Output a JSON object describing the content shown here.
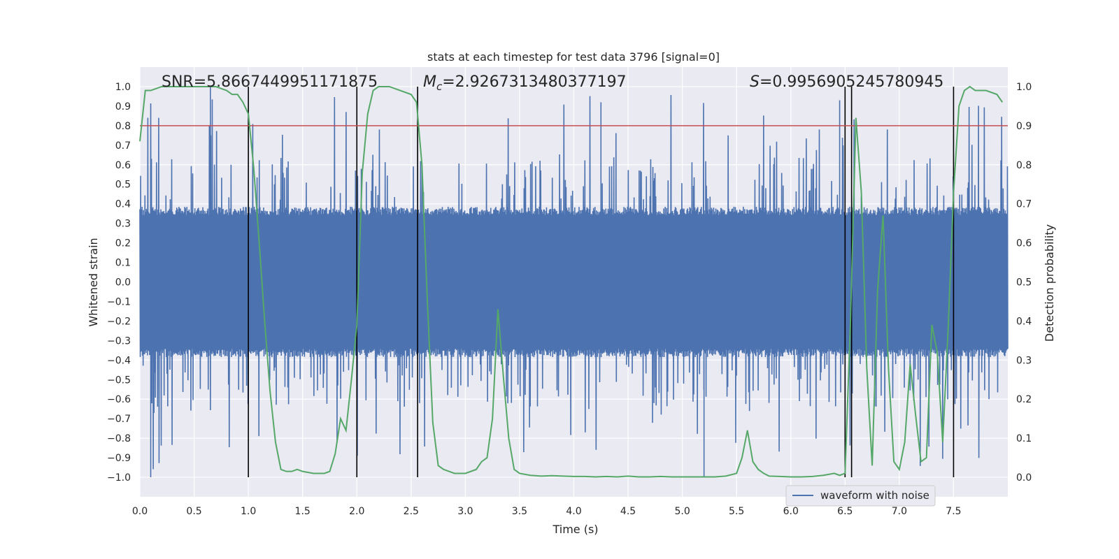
{
  "chart_data": {
    "type": "line",
    "title": "stats at each timestep for test data 3796 [signal=0]",
    "xlabel": "Time (s)",
    "ylabel": "Whitened strain",
    "y2label": "Detection probability",
    "xlim": [
      0.0,
      8.0
    ],
    "ylim": [
      -1.1,
      1.1
    ],
    "y2lim": [
      -0.05,
      1.05
    ],
    "xticks": [
      0.0,
      0.5,
      1.0,
      1.5,
      2.0,
      2.5,
      3.0,
      3.5,
      4.0,
      4.5,
      5.0,
      5.5,
      6.0,
      6.5,
      7.0,
      7.5
    ],
    "xtick_labels": [
      "0.0",
      "0.5",
      "1.0",
      "1.5",
      "2.0",
      "2.5",
      "3.0",
      "3.5",
      "4.0",
      "4.5",
      "5.0",
      "5.5",
      "6.0",
      "6.5",
      "7.0",
      "7.5"
    ],
    "yticks": [
      1.0,
      0.9,
      0.8,
      0.7,
      0.6,
      0.5,
      0.4,
      0.3,
      0.2,
      0.1,
      0.0,
      -0.1,
      -0.2,
      -0.3,
      -0.4,
      -0.5,
      -0.6,
      -0.7,
      -0.8,
      -0.9,
      -1.0
    ],
    "ytick_labels": [
      "1.0",
      "0.9",
      "0.8",
      "0.7",
      "0.6",
      "0.5",
      "0.4",
      "0.3",
      "0.2",
      "0.1",
      "0.0",
      "−0.1",
      "−0.2",
      "−0.3",
      "−0.4",
      "−0.5",
      "−0.6",
      "−0.7",
      "−0.8",
      "−0.9",
      "−1.0"
    ],
    "y2ticks": [
      1.0,
      0.9,
      0.8,
      0.7,
      0.6,
      0.5,
      0.4,
      0.3,
      0.2,
      0.1,
      0.0
    ],
    "y2tick_labels": [
      "1.0",
      "0.9",
      "0.8",
      "0.7",
      "0.6",
      "0.5",
      "0.4",
      "0.3",
      "0.2",
      "0.1",
      "0.0"
    ],
    "annotations": {
      "snr": "SNR=5.8667449951171875",
      "mc_symbol": "M",
      "mc_sub": "c",
      "mc_value": "=2.9267313480377197",
      "s_symbol": "S",
      "s_value": "=0.9956905245780945"
    },
    "legend": {
      "label": "waveform with noise",
      "position": "lower-right"
    },
    "threshold_prob": 0.9,
    "vertical_lines_x": [
      1.0,
      2.0,
      2.56,
      6.5,
      6.56,
      7.5
    ],
    "waveform": {
      "name": "waveform with noise",
      "color": "#4c72b0",
      "x_range": [
        0.0,
        8.0
      ],
      "samples": 2400,
      "seed": 3796,
      "core_amplitude": 0.36,
      "spike_max": 1.0,
      "spike_min": -1.0
    },
    "probability_series": {
      "name": "detection probability",
      "color": "#55a868",
      "x": [
        0.0,
        0.05,
        0.1,
        0.2,
        0.3,
        0.4,
        0.5,
        0.6,
        0.7,
        0.8,
        0.85,
        0.9,
        0.95,
        1.0,
        1.05,
        1.1,
        1.15,
        1.2,
        1.25,
        1.3,
        1.35,
        1.4,
        1.45,
        1.5,
        1.6,
        1.7,
        1.75,
        1.8,
        1.85,
        1.9,
        1.95,
        2.0,
        2.05,
        2.1,
        2.15,
        2.2,
        2.3,
        2.4,
        2.5,
        2.55,
        2.6,
        2.65,
        2.7,
        2.75,
        2.8,
        2.9,
        3.0,
        3.1,
        3.15,
        3.2,
        3.25,
        3.3,
        3.35,
        3.4,
        3.45,
        3.5,
        3.6,
        3.7,
        3.8,
        3.9,
        4.0,
        4.1,
        4.2,
        4.3,
        4.4,
        4.5,
        4.6,
        4.7,
        4.8,
        4.9,
        5.0,
        5.1,
        5.2,
        5.3,
        5.4,
        5.5,
        5.55,
        5.6,
        5.65,
        5.7,
        5.75,
        5.8,
        5.9,
        6.0,
        6.1,
        6.2,
        6.3,
        6.4,
        6.45,
        6.5,
        6.55,
        6.6,
        6.65,
        6.7,
        6.75,
        6.8,
        6.85,
        6.9,
        6.95,
        7.0,
        7.05,
        7.1,
        7.15,
        7.2,
        7.25,
        7.3,
        7.35,
        7.4,
        7.45,
        7.5,
        7.55,
        7.6,
        7.65,
        7.7,
        7.8,
        7.9,
        7.95
      ],
      "values": [
        0.86,
        0.99,
        0.99,
        1.0,
        1.0,
        1.0,
        1.0,
        1.0,
        1.0,
        0.99,
        0.98,
        0.98,
        0.96,
        0.93,
        0.79,
        0.6,
        0.4,
        0.22,
        0.09,
        0.02,
        0.015,
        0.015,
        0.02,
        0.015,
        0.01,
        0.01,
        0.015,
        0.06,
        0.15,
        0.12,
        0.25,
        0.39,
        0.78,
        0.93,
        0.99,
        1.0,
        1.0,
        0.99,
        0.98,
        0.96,
        0.8,
        0.45,
        0.14,
        0.03,
        0.02,
        0.01,
        0.01,
        0.02,
        0.04,
        0.05,
        0.15,
        0.43,
        0.26,
        0.1,
        0.02,
        0.01,
        0.005,
        0.003,
        0.004,
        0.003,
        0.002,
        0.002,
        0.001,
        0.002,
        0.001,
        0.003,
        0.001,
        0.001,
        0.002,
        0.001,
        0.001,
        0.001,
        0.001,
        0.001,
        0.003,
        0.01,
        0.05,
        0.12,
        0.04,
        0.02,
        0.01,
        0.003,
        0.002,
        0.001,
        0.001,
        0.002,
        0.005,
        0.01,
        0.005,
        0.01,
        0.4,
        0.92,
        0.73,
        0.28,
        0.03,
        0.48,
        0.67,
        0.28,
        0.04,
        0.02,
        0.09,
        0.29,
        0.16,
        0.04,
        0.05,
        0.39,
        0.32,
        0.09,
        0.38,
        0.73,
        0.95,
        0.99,
        1.0,
        0.99,
        0.99,
        0.98,
        0.96
      ]
    },
    "colors": {
      "background": "#ffffff",
      "plot_bg": "#eaeaf2",
      "grid": "#ffffff",
      "threshold": "#c44e52",
      "vline": "#000000"
    }
  }
}
